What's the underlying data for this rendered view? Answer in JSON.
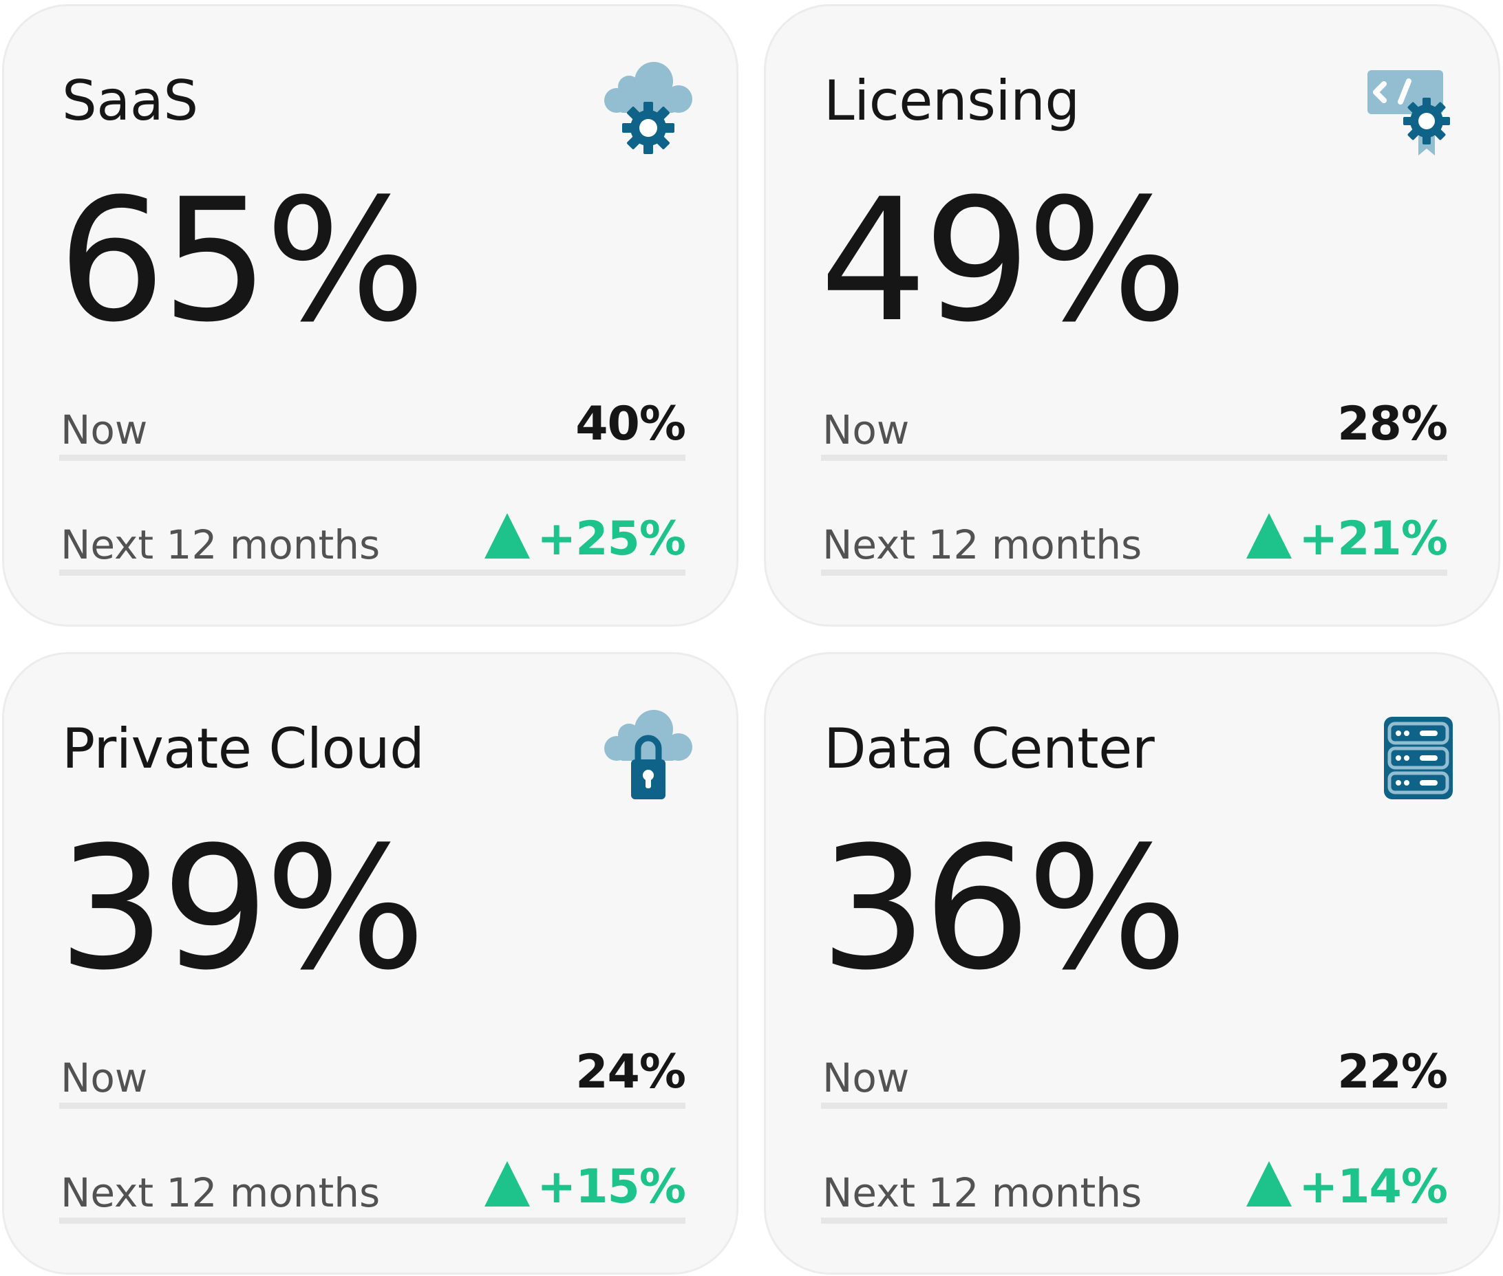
{
  "colors": {
    "accent_green": "#1ec28b",
    "icon_dark": "#0f6288",
    "icon_light": "#93bdd0",
    "card_bg": "#f7f7f7"
  },
  "cards": [
    {
      "title": "SaaS",
      "value": "65%",
      "icon": "cloud-gear-icon",
      "now_label": "Now",
      "now_value": "40%",
      "next_label": "Next 12 months",
      "next_value": "+25%",
      "trend": "up"
    },
    {
      "title": "Licensing",
      "value": "49%",
      "icon": "code-certificate-icon",
      "now_label": "Now",
      "now_value": "28%",
      "next_label": "Next 12 months",
      "next_value": "+21%",
      "trend": "up"
    },
    {
      "title": "Private Cloud",
      "value": "39%",
      "icon": "cloud-lock-icon",
      "now_label": "Now",
      "now_value": "24%",
      "next_label": "Next 12 months",
      "next_value": "+15%",
      "trend": "up"
    },
    {
      "title": "Data Center",
      "value": "36%",
      "icon": "server-rack-icon",
      "now_label": "Now",
      "now_value": "22%",
      "next_label": "Next 12 months",
      "next_value": "+14%",
      "trend": "up"
    }
  ]
}
